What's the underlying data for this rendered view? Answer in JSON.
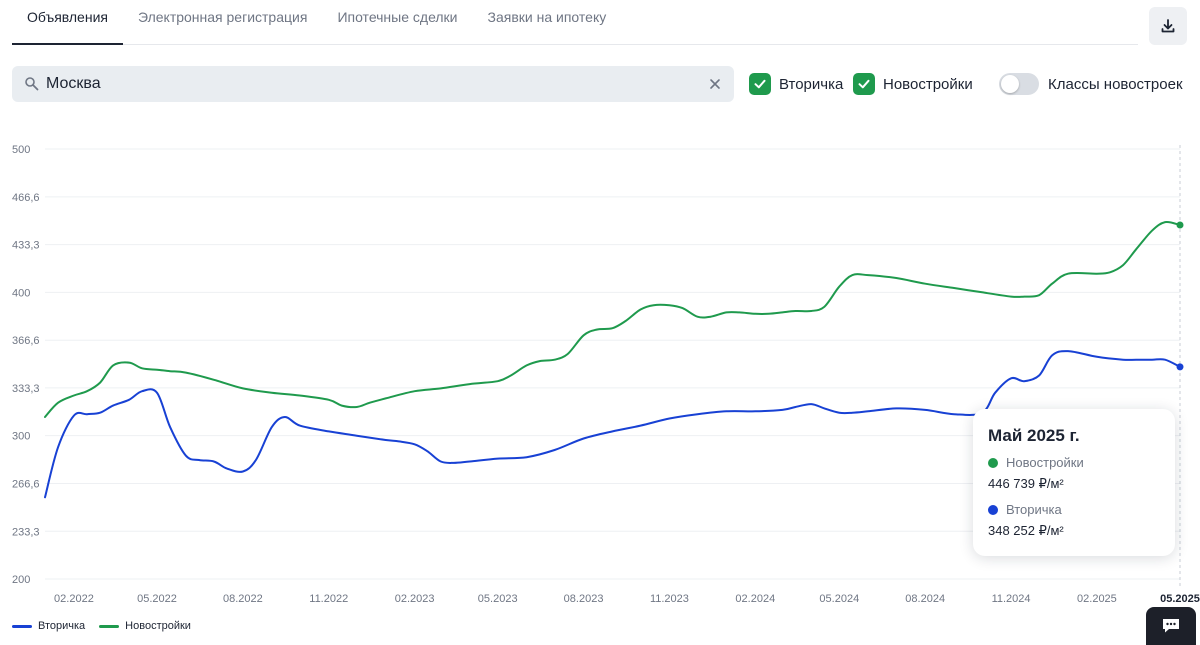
{
  "tabs": [
    {
      "label": "Объявления",
      "active": true
    },
    {
      "label": "Электронная регистрация",
      "active": false
    },
    {
      "label": "Ипотечные сделки",
      "active": false
    },
    {
      "label": "Заявки на ипотеку",
      "active": false
    }
  ],
  "search": {
    "value": "Москва"
  },
  "filters": {
    "secondary_label": "Вторичка",
    "new_label": "Новостройки",
    "classes_label": "Классы новостроек",
    "secondary_checked": true,
    "new_checked": true,
    "classes_on": false
  },
  "colors": {
    "green": "#1f9a4d",
    "blue": "#1841d4",
    "accent": "#1f9a4d"
  },
  "icons": {
    "download": "download-icon",
    "search": "search-icon",
    "clear": "close-icon",
    "check": "check-icon",
    "chat": "chat-icon"
  },
  "legend": {
    "secondary": "Вторичка",
    "new": "Новостройки"
  },
  "tooltip": {
    "title": "Май 2025 г.",
    "new_label": "Новостройки",
    "new_value": "446 739 ₽/м²",
    "secondary_label": "Вторичка",
    "secondary_value": "348 252 ₽/м²"
  },
  "chart_data": {
    "type": "line",
    "ylim": [
      200,
      500
    ],
    "yticks": [
      "500",
      "466,6",
      "433,3",
      "400",
      "366,6",
      "333,3",
      "300",
      "266,6",
      "233,3",
      "200"
    ],
    "ytick_values": [
      500,
      466.6,
      433.3,
      400,
      366.6,
      333.3,
      300,
      266.6,
      233.3,
      200
    ],
    "x_tick_labels": [
      "02.2022",
      "05.2022",
      "08.2022",
      "11.2022",
      "02.2023",
      "05.2023",
      "08.2023",
      "11.2023",
      "02.2024",
      "05.2024",
      "08.2024",
      "11.2024",
      "02.2025",
      "05.2025"
    ],
    "x_tick_dates": [
      "2022-02",
      "2022-05",
      "2022-08",
      "2022-11",
      "2023-02",
      "2023-05",
      "2023-08",
      "2023-11",
      "2024-02",
      "2024-05",
      "2024-08",
      "2024-11",
      "2025-02",
      "2025-05"
    ],
    "highlight_date": "2025-05",
    "grid": true,
    "legend_position": "bottom-left",
    "series": [
      {
        "name": "Новостройки",
        "color": "#1f9a4d",
        "x": [
          "2022-01-01",
          "2022-01-15",
          "2022-02-01",
          "2022-02-15",
          "2022-03-01",
          "2022-03-15",
          "2022-04-01",
          "2022-04-15",
          "2022-05-01",
          "2022-05-15",
          "2022-06-01",
          "2022-07-01",
          "2022-08-01",
          "2022-09-01",
          "2022-10-01",
          "2022-11-01",
          "2022-11-15",
          "2022-12-01",
          "2022-12-15",
          "2023-01-01",
          "2023-02-01",
          "2023-03-01",
          "2023-04-01",
          "2023-05-01",
          "2023-05-15",
          "2023-06-01",
          "2023-06-15",
          "2023-07-01",
          "2023-07-15",
          "2023-08-01",
          "2023-08-15",
          "2023-09-01",
          "2023-09-15",
          "2023-10-01",
          "2023-10-15",
          "2023-11-01",
          "2023-11-15",
          "2023-12-01",
          "2023-12-15",
          "2024-01-01",
          "2024-01-15",
          "2024-02-01",
          "2024-02-15",
          "2024-03-01",
          "2024-03-15",
          "2024-04-01",
          "2024-04-15",
          "2024-05-01",
          "2024-05-15",
          "2024-06-01",
          "2024-07-01",
          "2024-08-01",
          "2024-09-01",
          "2024-10-01",
          "2024-11-01",
          "2024-11-15",
          "2024-12-01",
          "2024-12-15",
          "2025-01-01",
          "2025-02-01",
          "2025-02-15",
          "2025-03-01",
          "2025-03-15",
          "2025-04-01",
          "2025-04-15",
          "2025-05-01"
        ],
        "values": [
          313,
          323,
          328,
          331,
          337,
          349,
          351,
          347,
          346,
          345,
          344,
          339,
          333,
          330,
          328,
          325,
          321,
          320,
          323,
          326,
          331,
          333,
          336,
          338,
          342,
          349,
          352,
          353,
          357,
          370,
          374,
          375,
          380,
          388,
          391,
          391,
          389,
          383,
          383,
          386,
          386,
          385,
          385,
          386,
          387,
          387,
          390,
          404,
          412,
          412,
          410,
          406,
          403,
          400,
          397,
          397,
          398,
          406,
          413,
          413,
          414,
          419,
          430,
          443,
          449,
          447
        ]
      },
      {
        "name": "Вторичка",
        "color": "#1841d4",
        "x": [
          "2022-01-01",
          "2022-01-15",
          "2022-02-01",
          "2022-02-15",
          "2022-03-01",
          "2022-03-15",
          "2022-04-01",
          "2022-04-15",
          "2022-05-01",
          "2022-05-15",
          "2022-06-01",
          "2022-06-15",
          "2022-07-01",
          "2022-07-15",
          "2022-08-01",
          "2022-08-15",
          "2022-09-01",
          "2022-09-15",
          "2022-10-01",
          "2022-11-01",
          "2022-12-01",
          "2023-01-01",
          "2023-01-15",
          "2023-02-01",
          "2023-02-15",
          "2023-03-01",
          "2023-03-15",
          "2023-04-01",
          "2023-05-01",
          "2023-06-01",
          "2023-07-01",
          "2023-08-01",
          "2023-09-01",
          "2023-10-01",
          "2023-11-01",
          "2023-12-01",
          "2024-01-01",
          "2024-02-01",
          "2024-03-01",
          "2024-03-15",
          "2024-04-01",
          "2024-04-15",
          "2024-05-01",
          "2024-05-15",
          "2024-06-01",
          "2024-07-01",
          "2024-08-01",
          "2024-09-01",
          "2024-10-01",
          "2024-10-15",
          "2024-11-01",
          "2024-11-15",
          "2024-12-01",
          "2024-12-15",
          "2025-01-01",
          "2025-02-01",
          "2025-03-01",
          "2025-03-15",
          "2025-04-01",
          "2025-04-15",
          "2025-05-01"
        ],
        "values": [
          257,
          292,
          314,
          315,
          316,
          321,
          325,
          331,
          330,
          306,
          286,
          283,
          282,
          277,
          275,
          283,
          306,
          313,
          307,
          303,
          300,
          297,
          296,
          294,
          289,
          282,
          281,
          282,
          284,
          285,
          290,
          298,
          303,
          307,
          312,
          315,
          317,
          317,
          318,
          320,
          322,
          319,
          316,
          316,
          317,
          319,
          318,
          315,
          316,
          330,
          340,
          338,
          342,
          356,
          359,
          355,
          353,
          353,
          353,
          353,
          348
        ]
      }
    ]
  }
}
